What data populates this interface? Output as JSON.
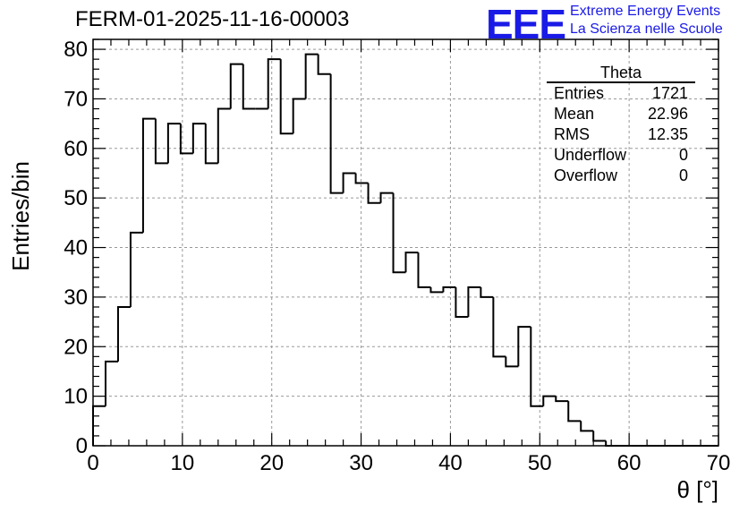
{
  "title": "FERM-01-2025-11-16-00003",
  "logo": {
    "mark": "EEE",
    "line1": "Extreme Energy Events",
    "line2": "La Scienza nelle Scuole",
    "color": "#1a1ae6"
  },
  "stats": {
    "title": "Theta",
    "rows": [
      {
        "label": "Entries",
        "value": "1721"
      },
      {
        "label": "Mean",
        "value": "22.96"
      },
      {
        "label": "RMS",
        "value": "12.35"
      },
      {
        "label": "Underflow",
        "value": "0"
      },
      {
        "label": "Overflow",
        "value": "0"
      }
    ]
  },
  "chart_data": {
    "type": "bar",
    "style": "step-histogram",
    "title": "FERM-01-2025-11-16-00003",
    "xlabel": "θ [°]",
    "ylabel": "Entries/bin",
    "xlim": [
      0,
      70
    ],
    "ylim": [
      0,
      82
    ],
    "bin_width": 1.4,
    "bin_edges_start": 0,
    "values": [
      8,
      17,
      28,
      43,
      66,
      57,
      65,
      59,
      65,
      57,
      68,
      77,
      68,
      68,
      78,
      63,
      70,
      79,
      75,
      51,
      55,
      53,
      49,
      51,
      35,
      39,
      32,
      31,
      32,
      26,
      32,
      30,
      18,
      16,
      24,
      8,
      10,
      9,
      5,
      3,
      1,
      0,
      0,
      0,
      0,
      0,
      0,
      0,
      0,
      0
    ],
    "xticks": [
      0,
      10,
      20,
      30,
      40,
      50,
      60,
      70
    ],
    "yticks": [
      0,
      10,
      20,
      30,
      40,
      50,
      60,
      70,
      80
    ],
    "grid": true,
    "line_color": "#000000"
  }
}
